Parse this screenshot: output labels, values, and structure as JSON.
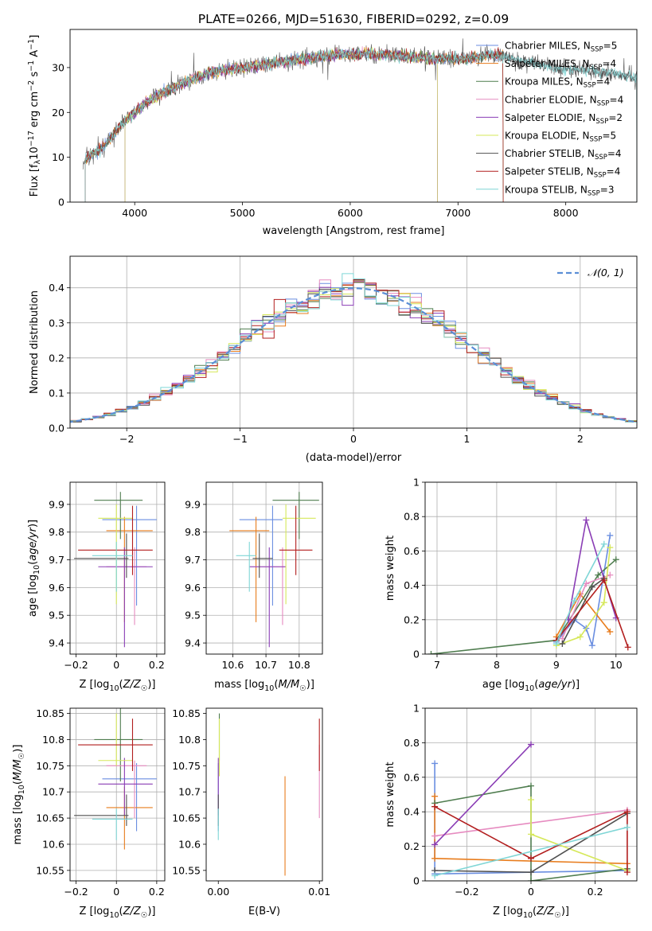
{
  "title": "PLATE=0266, MJD=51630, FIBERID=0292, z=0.09",
  "colors": [
    "#6a8ee0",
    "#e87d1e",
    "#4f7d4f",
    "#e68bc0",
    "#8a3db5",
    "#d6e85a",
    "#505050",
    "#b21e1e",
    "#7fd6d6"
  ],
  "chart_data": [
    {
      "id": "spectrum",
      "type": "line",
      "xlabel": "wavelength [Angstrom, rest frame]",
      "ylabel": "Flux [f_λ 10^-17 erg cm^-2 s^-1 A^-1]",
      "xlim": [
        3400,
        8660
      ],
      "ylim": [
        0,
        38.5
      ],
      "xticks": [
        4000,
        5000,
        6000,
        7000,
        8000
      ],
      "yticks": [
        0,
        10,
        20,
        30
      ],
      "grid": false,
      "legend": "top-right",
      "continuum": [
        [
          3500,
          9
        ],
        [
          3700,
          12
        ],
        [
          3900,
          18
        ],
        [
          4100,
          22
        ],
        [
          4300,
          25
        ],
        [
          4500,
          27
        ],
        [
          4700,
          29
        ],
        [
          5000,
          30
        ],
        [
          5300,
          31
        ],
        [
          5600,
          32
        ],
        [
          5900,
          33
        ],
        [
          6200,
          33
        ],
        [
          6500,
          32.5
        ],
        [
          6800,
          32
        ],
        [
          7100,
          32
        ],
        [
          7300,
          33
        ],
        [
          7500,
          32
        ],
        [
          7700,
          31
        ],
        [
          7900,
          30
        ],
        [
          8100,
          29.5
        ],
        [
          8300,
          29
        ],
        [
          8500,
          28.5
        ],
        [
          8660,
          28
        ]
      ],
      "series": [
        {
          "name": "Chabrier MILES, N_SSP=5",
          "xrange": [
            3540,
            7420
          ]
        },
        {
          "name": "Salpeter MILES, N_SSP=4",
          "xrange": [
            3540,
            7420
          ]
        },
        {
          "name": "Kroupa MILES, N_SSP=4",
          "xrange": [
            3540,
            7420
          ]
        },
        {
          "name": "Chabrier ELODIE, N_SSP=4",
          "xrange": [
            3910,
            6810
          ]
        },
        {
          "name": "Salpeter ELODIE, N_SSP=2",
          "xrange": [
            3910,
            6810
          ]
        },
        {
          "name": "Kroupa ELODIE, N_SSP=5",
          "xrange": [
            3910,
            6810
          ]
        },
        {
          "name": "Chabrier STELIB, N_SSP=4",
          "xrange": [
            3540,
            8660
          ]
        },
        {
          "name": "Salpeter STELIB, N_SSP=4",
          "xrange": [
            3540,
            7420
          ]
        },
        {
          "name": "Kroupa STELIB, N_SSP=3",
          "xrange": [
            3540,
            8660
          ]
        }
      ]
    },
    {
      "id": "residuals",
      "type": "line",
      "xlabel": "(data-model)/error",
      "ylabel": "Normed distribution",
      "xlim": [
        -2.5,
        2.5
      ],
      "ylim": [
        0,
        0.49
      ],
      "xticks": [
        -2,
        -1,
        0,
        1,
        2
      ],
      "yticks": [
        0.0,
        0.1,
        0.2,
        0.3,
        0.4
      ],
      "grid": true,
      "legend": "top-right",
      "reference": {
        "name": "𝒩(0, 1)",
        "mu": 0,
        "sigma": 1
      },
      "bin_width": 0.1
    },
    {
      "id": "age-vs-Z",
      "type": "scatter",
      "xlabel": "Z [log10(Z/Z☉)]",
      "ylabel": "age [log10(age/yr)]",
      "xlim": [
        -0.23,
        0.24
      ],
      "ylim": [
        9.36,
        9.98
      ],
      "xticks": [
        -0.2,
        0.0,
        0.2
      ],
      "yticks": [
        9.4,
        9.5,
        9.6,
        9.7,
        9.8,
        9.9
      ],
      "grid": true,
      "points": [
        {
          "x": 0.1,
          "y": 9.845,
          "xerr": [
            0.17,
            0.1
          ],
          "yerr": [
            0.31,
            0.05
          ]
        },
        {
          "x": 0.04,
          "y": 9.805,
          "xerr": [
            0.09,
            0.14
          ],
          "yerr": [
            0.33,
            0.05
          ]
        },
        {
          "x": 0.02,
          "y": 9.915,
          "xerr": [
            0.13,
            0.11
          ],
          "yerr": [
            0.14,
            0.03
          ]
        },
        {
          "x": 0.09,
          "y": 9.675,
          "xerr": [
            0.14,
            0.06
          ],
          "yerr": [
            0.21,
            0.07
          ]
        },
        {
          "x": 0.04,
          "y": 9.675,
          "xerr": [
            0.13,
            0.14
          ],
          "yerr": [
            0.29,
            0.07
          ]
        },
        {
          "x": 0.0,
          "y": 9.85,
          "xerr": [
            0.09,
            0.08
          ],
          "yerr": [
            0.31,
            0.05
          ]
        },
        {
          "x": 0.05,
          "y": 9.705,
          "xerr": [
            0.26,
            0.01
          ],
          "yerr": [
            0.07,
            0.09
          ]
        },
        {
          "x": 0.08,
          "y": 9.735,
          "xerr": [
            0.27,
            0.1
          ],
          "yerr": [
            0.09,
            0.16
          ]
        },
        {
          "x": 0.0,
          "y": 9.715,
          "xerr": [
            0.12,
            0.08
          ],
          "yerr": [
            0.13,
            0.05
          ]
        }
      ]
    },
    {
      "id": "age-vs-mass",
      "type": "scatter",
      "xlabel": "mass [log10(M/M☉)]",
      "ylabel": "",
      "xlim": [
        10.52,
        10.87
      ],
      "ylim": [
        9.36,
        9.98
      ],
      "xticks": [
        10.6,
        10.7,
        10.8
      ],
      "yticks": [
        9.4,
        9.5,
        9.6,
        9.7,
        9.8,
        9.9
      ],
      "grid": true,
      "points": [
        {
          "x": 10.72,
          "y": 9.845,
          "xerr": [
            0.1,
            0.03
          ],
          "yerr": [
            0.31,
            0.05
          ]
        },
        {
          "x": 10.67,
          "y": 9.805,
          "xerr": [
            0.08,
            0.04
          ],
          "yerr": [
            0.33,
            0.05
          ]
        },
        {
          "x": 10.8,
          "y": 9.915,
          "xerr": [
            0.08,
            0.06
          ],
          "yerr": [
            0.14,
            0.03
          ]
        },
        {
          "x": 10.75,
          "y": 9.675,
          "xerr": [
            0.1,
            0.01
          ],
          "yerr": [
            0.21,
            0.07
          ]
        },
        {
          "x": 10.71,
          "y": 9.675,
          "xerr": [
            0.06,
            0.05
          ],
          "yerr": [
            0.29,
            0.07
          ]
        },
        {
          "x": 10.76,
          "y": 9.85,
          "xerr": [
            0.01,
            0.09
          ],
          "yerr": [
            0.31,
            0.05
          ]
        },
        {
          "x": 10.68,
          "y": 9.705,
          "xerr": [
            0.02,
            0.04
          ],
          "yerr": [
            0.07,
            0.09
          ]
        },
        {
          "x": 10.79,
          "y": 9.735,
          "xerr": [
            0.05,
            0.05
          ],
          "yerr": [
            0.09,
            0.16
          ]
        },
        {
          "x": 10.65,
          "y": 9.715,
          "xerr": [
            0.04,
            0.02
          ],
          "yerr": [
            0.13,
            0.05
          ]
        }
      ]
    },
    {
      "id": "weight-vs-age",
      "type": "line",
      "xlabel": "age  [log10(age/yr)]",
      "ylabel": "mass weight",
      "xlim": [
        6.8,
        10.35
      ],
      "ylim": [
        0,
        1
      ],
      "xticks": [
        7,
        8,
        9,
        10
      ],
      "yticks": [
        0.0,
        0.2,
        0.4,
        0.6,
        0.8,
        1.0
      ],
      "grid": true,
      "series": [
        {
          "points": [
            [
              9.0,
              0.07
            ],
            [
              9.3,
              0.2
            ],
            [
              9.5,
              0.15
            ],
            [
              9.6,
              0.05
            ],
            [
              9.9,
              0.69
            ]
          ]
        },
        {
          "points": [
            [
              9.0,
              0.1
            ],
            [
              9.4,
              0.35
            ],
            [
              9.9,
              0.13
            ]
          ]
        },
        {
          "points": [
            [
              6.9,
              0.0
            ],
            [
              9.0,
              0.08
            ],
            [
              9.7,
              0.46
            ],
            [
              10.0,
              0.55
            ]
          ]
        },
        {
          "points": [
            [
              9.1,
              0.09
            ],
            [
              9.5,
              0.41
            ],
            [
              9.9,
              0.46
            ]
          ]
        },
        {
          "points": [
            [
              9.2,
              0.2
            ],
            [
              9.5,
              0.78
            ],
            [
              10.0,
              0.21
            ]
          ]
        },
        {
          "points": [
            [
              9.0,
              0.05
            ],
            [
              9.4,
              0.1
            ],
            [
              9.8,
              0.3
            ],
            [
              9.9,
              0.62
            ]
          ]
        },
        {
          "points": [
            [
              9.1,
              0.06
            ],
            [
              9.6,
              0.39
            ],
            [
              9.8,
              0.44
            ]
          ]
        },
        {
          "points": [
            [
              9.0,
              0.08
            ],
            [
              9.8,
              0.43
            ],
            [
              10.2,
              0.04
            ]
          ]
        },
        {
          "points": [
            [
              9.0,
              0.06
            ],
            [
              9.3,
              0.31
            ],
            [
              9.8,
              0.64
            ]
          ]
        }
      ]
    },
    {
      "id": "mass-vs-Z",
      "type": "scatter",
      "xlabel": "Z [log10(Z/Z☉)]",
      "ylabel": "mass [log10(M/M☉)]",
      "xlim": [
        -0.23,
        0.24
      ],
      "ylim": [
        10.53,
        10.86
      ],
      "xticks": [
        -0.2,
        0.0,
        0.2
      ],
      "yticks": [
        10.55,
        10.6,
        10.65,
        10.7,
        10.75,
        10.8,
        10.85
      ],
      "grid": true,
      "points": [
        {
          "x": 0.1,
          "y": 10.725,
          "xerr": [
            0.17,
            0.1
          ],
          "yerr": [
            0.1,
            0.03
          ]
        },
        {
          "x": 0.04,
          "y": 10.67,
          "xerr": [
            0.09,
            0.14
          ],
          "yerr": [
            0.08,
            0.04
          ]
        },
        {
          "x": 0.02,
          "y": 10.8,
          "xerr": [
            0.13,
            0.11
          ],
          "yerr": [
            0.08,
            0.06
          ]
        },
        {
          "x": 0.09,
          "y": 10.75,
          "xerr": [
            0.14,
            0.06
          ],
          "yerr": [
            0.1,
            0.01
          ]
        },
        {
          "x": 0.04,
          "y": 10.715,
          "xerr": [
            0.13,
            0.14
          ],
          "yerr": [
            0.06,
            0.05
          ]
        },
        {
          "x": 0.0,
          "y": 10.76,
          "xerr": [
            0.09,
            0.08
          ],
          "yerr": [
            0.01,
            0.09
          ]
        },
        {
          "x": 0.05,
          "y": 10.655,
          "xerr": [
            0.26,
            0.01
          ],
          "yerr": [
            0.02,
            0.04
          ]
        },
        {
          "x": 0.08,
          "y": 10.79,
          "xerr": [
            0.27,
            0.1
          ],
          "yerr": [
            0.05,
            0.05
          ]
        },
        {
          "x": 0.0,
          "y": 10.648,
          "xerr": [
            0.12,
            0.08
          ],
          "yerr": [
            0.04,
            0.02
          ]
        }
      ]
    },
    {
      "id": "mass-vs-EBV",
      "type": "scatter",
      "xlabel": "E(B-V)",
      "ylabel": "",
      "xlim": [
        -0.0012,
        0.0103
      ],
      "ylim": [
        10.53,
        10.86
      ],
      "xticks": [
        0.0,
        0.01
      ],
      "xticklabels": [
        "0.00",
        "0.01"
      ],
      "yticks": [
        10.55,
        10.6,
        10.65,
        10.7,
        10.75,
        10.8,
        10.85
      ],
      "grid": false,
      "points": [
        {
          "x": 0.0,
          "y": 10.725,
          "xerr": [
            0,
            0
          ],
          "yerr": [
            0.1,
            0.03
          ]
        },
        {
          "x": 0.0066,
          "y": 10.67,
          "xerr": [
            0,
            0
          ],
          "yerr": [
            0.13,
            0.06
          ]
        },
        {
          "x": 0.0001,
          "y": 10.8,
          "xerr": [
            0,
            0
          ],
          "yerr": [
            0.04,
            0.05
          ]
        },
        {
          "x": 0.01,
          "y": 10.75,
          "xerr": [
            0,
            0
          ],
          "yerr": [
            0.1,
            0.04
          ]
        },
        {
          "x": 0.0,
          "y": 10.715,
          "xerr": [
            0,
            0
          ],
          "yerr": [
            0.06,
            0.05
          ]
        },
        {
          "x": 0.0001,
          "y": 10.76,
          "xerr": [
            0,
            0
          ],
          "yerr": [
            0.03,
            0.08
          ]
        },
        {
          "x": 0.0,
          "y": 10.655,
          "xerr": [
            0,
            0
          ],
          "yerr": [
            0.02,
            0.04
          ]
        },
        {
          "x": 0.01,
          "y": 10.79,
          "xerr": [
            0,
            0
          ],
          "yerr": [
            0.05,
            0.05
          ]
        },
        {
          "x": 0.0,
          "y": 10.648,
          "xerr": [
            0,
            0
          ],
          "yerr": [
            0.04,
            0.02
          ]
        }
      ]
    },
    {
      "id": "weight-vs-Z",
      "type": "line",
      "xlabel": "Z [log10(Z/Z☉)]",
      "ylabel": "mass weight",
      "xlim": [
        -0.33,
        0.33
      ],
      "ylim": [
        0,
        1
      ],
      "xticks": [
        -0.2,
        0.0,
        0.2
      ],
      "yticks": [
        0.0,
        0.2,
        0.4,
        0.6,
        0.8,
        1.0
      ],
      "grid": true,
      "series": [
        {
          "points": [
            [
              -0.3,
              0.68
            ],
            [
              -0.3,
              0.04
            ],
            [
              0.3,
              0.06
            ]
          ]
        },
        {
          "points": [
            [
              -0.3,
              0.49
            ],
            [
              -0.3,
              0.13
            ],
            [
              0.3,
              0.1
            ]
          ]
        },
        {
          "points": [
            [
              -0.3,
              0.45
            ],
            [
              0.0,
              0.55
            ],
            [
              0.0,
              0.0
            ],
            [
              0.3,
              0.07
            ]
          ]
        },
        {
          "points": [
            [
              -0.3,
              0.26
            ],
            [
              0.3,
              0.41
            ]
          ]
        },
        {
          "points": [
            [
              -0.3,
              0.21
            ],
            [
              0.0,
              0.79
            ]
          ]
        },
        {
          "points": [
            [
              0.0,
              0.47
            ],
            [
              0.0,
              0.27
            ],
            [
              0.3,
              0.06
            ]
          ]
        },
        {
          "points": [
            [
              -0.3,
              0.06
            ],
            [
              0.0,
              0.05
            ],
            [
              0.3,
              0.39
            ]
          ]
        },
        {
          "points": [
            [
              -0.3,
              0.43
            ],
            [
              0.0,
              0.13
            ],
            [
              0.3,
              0.4
            ],
            [
              0.3,
              0.05
            ]
          ]
        },
        {
          "points": [
            [
              -0.3,
              0.03
            ],
            [
              0.3,
              0.31
            ]
          ]
        }
      ]
    }
  ]
}
